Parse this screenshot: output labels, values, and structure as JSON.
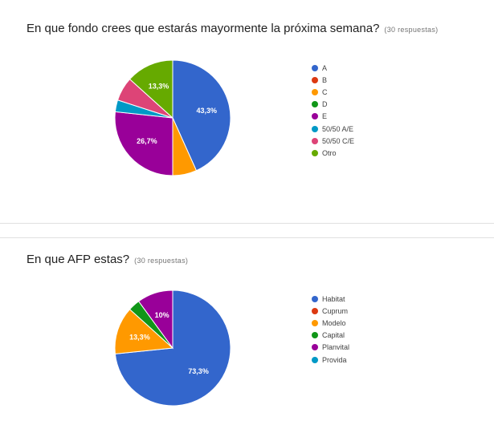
{
  "charts": [
    {
      "question": "En que fondo crees que estarás mayormente la próxima semana?",
      "responses": "(30 respuestas)"
    },
    {
      "question": "En que AFP estas?",
      "responses": "(30 respuestas)"
    }
  ],
  "chart_data": [
    {
      "type": "pie",
      "categories": [
        "A",
        "B",
        "C",
        "D",
        "E",
        "50/50 A/E",
        "50/50 C/E",
        "Otro"
      ],
      "values": [
        43.3,
        0,
        6.7,
        0,
        26.7,
        3.3,
        6.7,
        13.3
      ],
      "slice_labels": [
        "43,3%",
        "",
        "",
        "",
        "26,7%",
        "",
        "",
        "13,3%"
      ],
      "colors": [
        "#3366cc",
        "#dc3912",
        "#ff9900",
        "#109618",
        "#990099",
        "#0099c6",
        "#dd4477",
        "#66aa00"
      ],
      "legend_position": "right"
    },
    {
      "type": "pie",
      "categories": [
        "Habitat",
        "Cuprum",
        "Modelo",
        "Capital",
        "Planvital",
        "Provida"
      ],
      "values": [
        73.3,
        0,
        13.3,
        3.3,
        10,
        0
      ],
      "slice_labels": [
        "73,3%",
        "",
        "13,3%",
        "",
        "10%",
        ""
      ],
      "colors": [
        "#3366cc",
        "#dc3912",
        "#ff9900",
        "#109618",
        "#990099",
        "#0099c6"
      ],
      "legend_position": "right"
    }
  ]
}
